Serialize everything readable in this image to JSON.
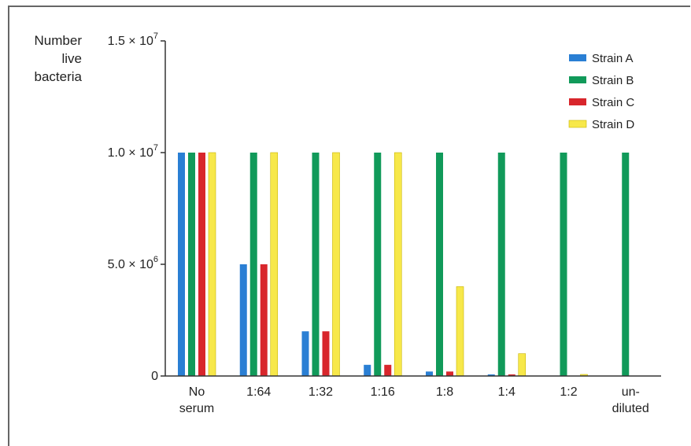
{
  "chart_data": {
    "type": "bar",
    "ylabel_lines": [
      "Number",
      "live",
      "bacteria"
    ],
    "yticks": [
      {
        "value": 0,
        "label": "0",
        "sup": ""
      },
      {
        "value": 5000000,
        "label": "5.0 × 10",
        "sup": "6"
      },
      {
        "value": 10000000,
        "label": "1.0 × 10",
        "sup": "7"
      },
      {
        "value": 15000000,
        "label": "1.5 × 10",
        "sup": "7"
      }
    ],
    "ylim": [
      0,
      15000000
    ],
    "categories": [
      [
        "No",
        "serum"
      ],
      [
        "1:64"
      ],
      [
        "1:32"
      ],
      [
        "1:16"
      ],
      [
        "1:8"
      ],
      [
        "1:4"
      ],
      [
        "1:2"
      ],
      [
        "un-",
        "diluted"
      ]
    ],
    "series": [
      {
        "name": "Strain A",
        "color": "#2a7fd4",
        "values": [
          10000000,
          5000000,
          2000000,
          500000,
          200000,
          50000,
          0,
          0
        ]
      },
      {
        "name": "Strain B",
        "color": "#119a5a",
        "values": [
          10000000,
          10000000,
          10000000,
          10000000,
          10000000,
          10000000,
          10000000,
          10000000
        ]
      },
      {
        "name": "Strain C",
        "color": "#d8262c",
        "values": [
          10000000,
          5000000,
          2000000,
          500000,
          200000,
          50000,
          0,
          0
        ]
      },
      {
        "name": "Strain D",
        "color": "#f7e84a",
        "values": [
          10000000,
          10000000,
          10000000,
          10000000,
          4000000,
          1000000,
          50000,
          0
        ]
      }
    ],
    "legend_position": "top-right",
    "grid": false
  }
}
